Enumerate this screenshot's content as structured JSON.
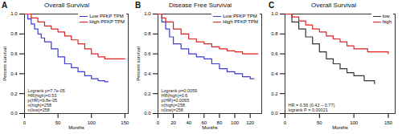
{
  "chart_data": [
    {
      "type": "line",
      "panel": "A",
      "title": "Overall Survival",
      "xlabel": "Months",
      "ylabel": "Percent survival",
      "xlim": [
        0,
        155
      ],
      "xticks": [
        0,
        50,
        100,
        150
      ],
      "ylim": [
        0,
        1
      ],
      "yticks": [
        {
          "value": 0,
          "label": "0.0"
        },
        0.2,
        0.4,
        0.6,
        0.8,
        {
          "value": 1,
          "label": "1.0"
        }
      ],
      "line_style": "step",
      "legend": "top-right",
      "annotations": [
        "Logrank p=7.7e-05",
        "HR(high)=0.53",
        "p(HR)=9.8e-05",
        "n(high)=258",
        "n(low)=258"
      ],
      "series": [
        {
          "name": "Low PFKP TPM",
          "color": "#3b3bd6",
          "x": [
            0,
            5,
            10,
            15,
            20,
            25,
            30,
            40,
            50,
            60,
            70,
            80,
            90,
            100,
            110,
            120,
            125
          ],
          "values": [
            1.0,
            0.95,
            0.9,
            0.85,
            0.8,
            0.76,
            0.72,
            0.65,
            0.57,
            0.5,
            0.46,
            0.42,
            0.38,
            0.35,
            0.33,
            0.32,
            0.32
          ]
        },
        {
          "name": "High PFKP TPM",
          "color": "#e02020",
          "x": [
            0,
            10,
            20,
            30,
            40,
            50,
            60,
            70,
            80,
            90,
            100,
            110,
            120,
            130,
            150
          ],
          "values": [
            1.0,
            0.96,
            0.92,
            0.88,
            0.85,
            0.82,
            0.78,
            0.74,
            0.7,
            0.65,
            0.6,
            0.57,
            0.55,
            0.55,
            0.55
          ]
        }
      ]
    },
    {
      "type": "line",
      "panel": "B",
      "title": "Disease Free Survival",
      "xlabel": "Months",
      "ylabel": "Percent survival",
      "xlim": [
        0,
        135
      ],
      "xticks": [
        0,
        20,
        40,
        60,
        80,
        100,
        120
      ],
      "ylim": [
        0,
        1
      ],
      "yticks": [
        {
          "value": 0,
          "label": "0.0"
        },
        0.2,
        0.4,
        0.6,
        0.8,
        {
          "value": 1,
          "label": "1.0"
        }
      ],
      "line_style": "step",
      "legend": "top-right",
      "annotations": [
        "Logrank p=0.0059",
        "HR(high)=0.6",
        "p(HR)=0.0065",
        "n(high)=258",
        "n(low)=258"
      ],
      "series": [
        {
          "name": "Low PFKP TPM",
          "color": "#3b3bd6",
          "x": [
            0,
            5,
            10,
            15,
            20,
            30,
            40,
            50,
            60,
            70,
            80,
            90,
            100,
            110,
            120,
            125
          ],
          "values": [
            1.0,
            0.92,
            0.85,
            0.77,
            0.7,
            0.65,
            0.6,
            0.57,
            0.55,
            0.5,
            0.45,
            0.42,
            0.4,
            0.37,
            0.35,
            0.35
          ]
        },
        {
          "name": "High PFKP TPM",
          "color": "#e02020",
          "x": [
            0,
            5,
            10,
            20,
            30,
            40,
            50,
            60,
            70,
            80,
            90,
            100,
            110,
            130
          ],
          "values": [
            1.0,
            0.96,
            0.92,
            0.85,
            0.8,
            0.75,
            0.72,
            0.7,
            0.67,
            0.65,
            0.63,
            0.62,
            0.6,
            0.6
          ]
        }
      ]
    },
    {
      "type": "line",
      "panel": "C",
      "title": "Overall Survival",
      "xlabel": "Months",
      "xlim": [
        0,
        160
      ],
      "xticks": [
        0,
        50,
        100,
        150
      ],
      "ylim": [
        0,
        1
      ],
      "yticks": [
        {
          "value": 0,
          "label": "0.0"
        },
        0.2,
        0.4,
        0.6,
        0.8,
        {
          "value": 1,
          "label": "1.0"
        }
      ],
      "line_style": "step",
      "legend": "top-right",
      "annotations": [
        "HR = 0.56 (0.42 − 0.77)",
        "logrank P = 0.00021"
      ],
      "series": [
        {
          "name": "low",
          "color": "#333333",
          "x": [
            0,
            10,
            20,
            30,
            40,
            50,
            60,
            70,
            80,
            90,
            100,
            115,
            130
          ],
          "values": [
            1.0,
            0.92,
            0.85,
            0.77,
            0.7,
            0.62,
            0.55,
            0.5,
            0.45,
            0.41,
            0.38,
            0.33,
            0.3
          ]
        },
        {
          "name": "high",
          "color": "#e02020",
          "x": [
            0,
            10,
            20,
            30,
            40,
            50,
            60,
            70,
            80,
            90,
            100,
            120,
            150
          ],
          "values": [
            1.0,
            0.97,
            0.93,
            0.89,
            0.85,
            0.82,
            0.78,
            0.75,
            0.72,
            0.68,
            0.65,
            0.62,
            0.6
          ]
        }
      ]
    }
  ]
}
